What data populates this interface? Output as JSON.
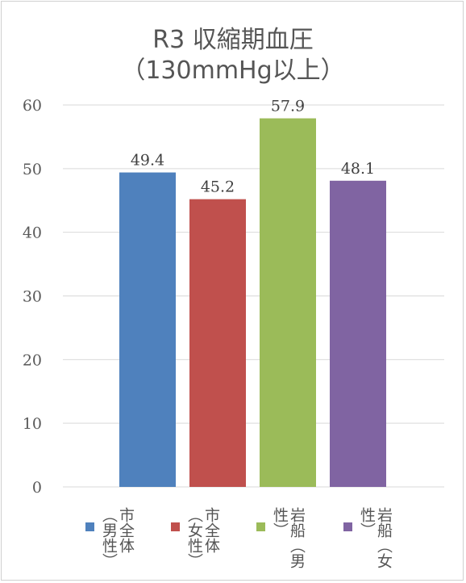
{
  "chart_data": {
    "type": "bar",
    "title": "R3 収縮期血圧",
    "subtitle": "（130mmHg以上）",
    "categories": [
      "市全体（男性）",
      "市全体（女性）",
      "岩船（男性）",
      "岩船（女性）"
    ],
    "values": [
      49.4,
      45.2,
      57.9,
      48.1
    ],
    "data_labels": [
      "49.4",
      "45.2",
      "57.9",
      "48.1"
    ],
    "colors": [
      "#4f81bd",
      "#c0504d",
      "#9bbb59",
      "#8064a2"
    ],
    "ylim": [
      0,
      60
    ],
    "yticks": [
      0,
      10,
      20,
      30,
      40,
      50,
      60
    ],
    "grid": true,
    "legend_position": "bottom"
  }
}
